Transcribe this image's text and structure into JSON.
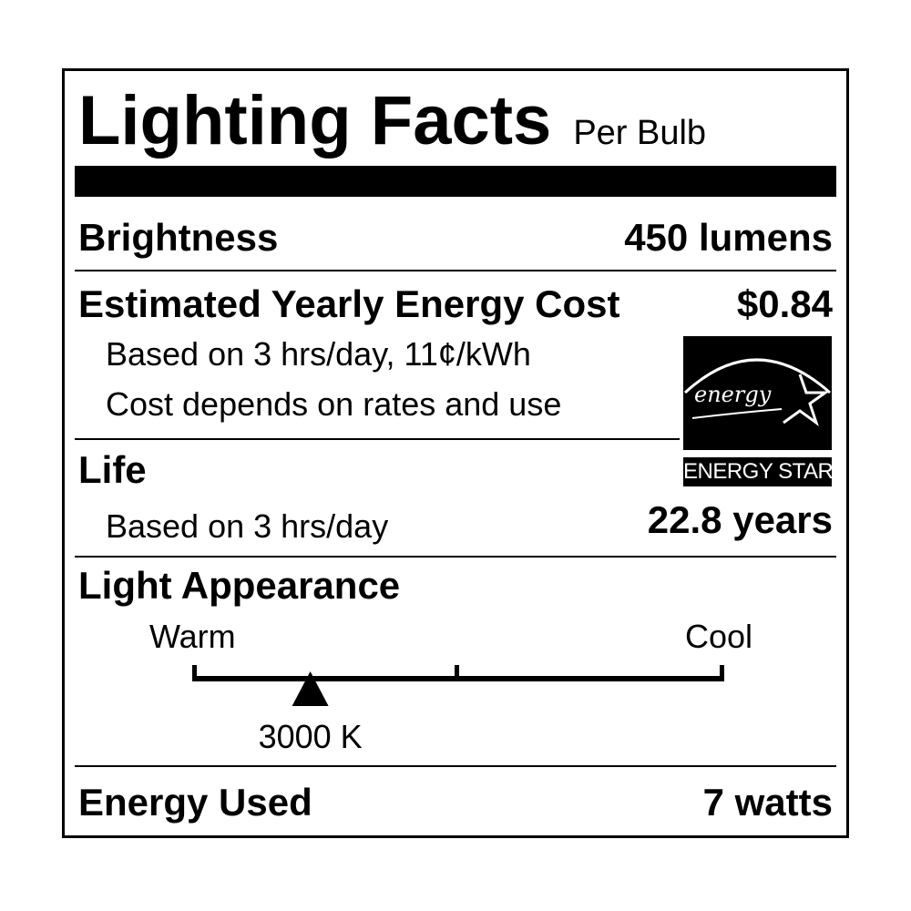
{
  "header": {
    "title": "Lighting Facts",
    "subtitle": "Per Bulb"
  },
  "brightness": {
    "label": "Brightness",
    "value": "450 lumens"
  },
  "cost": {
    "label": "Estimated Yearly Energy Cost",
    "value": "$0.84",
    "note1": "Based on 3 hrs/day, 11¢/kWh",
    "note2": "Cost depends on rates and use"
  },
  "life": {
    "label": "Life",
    "note": "Based on 3 hrs/day",
    "value": "22.8 years"
  },
  "appearance": {
    "label": "Light Appearance",
    "warm": "Warm",
    "cool": "Cool",
    "value": "3000 K",
    "position_fraction": 0.22
  },
  "energy": {
    "label": "Energy Used",
    "value": "7 watts"
  },
  "logo": {
    "script_text": "energy",
    "caption": "ENERGY STAR"
  }
}
